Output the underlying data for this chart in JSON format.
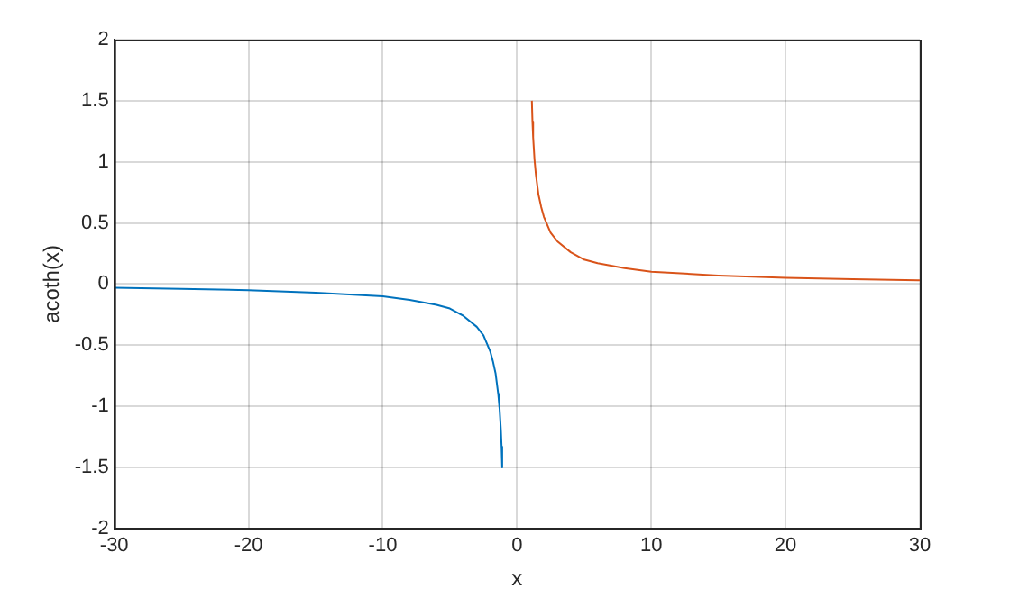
{
  "chart_data": {
    "type": "line",
    "xlabel": "x",
    "ylabel": "acoth(x)",
    "xlim": [
      -30,
      30
    ],
    "ylim": [
      -2,
      2
    ],
    "xticks": [
      -30,
      -20,
      -10,
      0,
      10,
      20,
      30
    ],
    "yticks": [
      -2,
      -1.5,
      -1,
      -0.5,
      0,
      0.5,
      1,
      1.5,
      2
    ],
    "grid": true,
    "series": [
      {
        "color": "#0072bd",
        "x": [
          -30,
          -25,
          -20,
          -15,
          -10,
          -8,
          -6,
          -5,
          -4,
          -3,
          -2.5,
          -2,
          -1.8,
          -1.6,
          -1.4,
          -1.3,
          -1.2,
          -1.15,
          -1.105
        ],
        "values": [
          -0.03,
          -0.04,
          -0.05,
          -0.07,
          -0.1,
          -0.13,
          -0.17,
          -0.2,
          -0.26,
          -0.35,
          -0.42,
          -0.55,
          -0.63,
          -0.73,
          -0.9,
          -1.02,
          -1.2,
          -1.33,
          -1.5
        ]
      },
      {
        "color": "#d95319",
        "x": [
          1.105,
          1.15,
          1.2,
          1.3,
          1.4,
          1.6,
          1.8,
          2,
          2.5,
          3,
          4,
          5,
          6,
          8,
          10,
          15,
          20,
          25,
          30
        ],
        "values": [
          1.5,
          1.33,
          1.2,
          1.02,
          0.9,
          0.73,
          0.63,
          0.55,
          0.42,
          0.35,
          0.26,
          0.2,
          0.17,
          0.13,
          0.1,
          0.07,
          0.05,
          0.04,
          0.03
        ]
      }
    ]
  }
}
